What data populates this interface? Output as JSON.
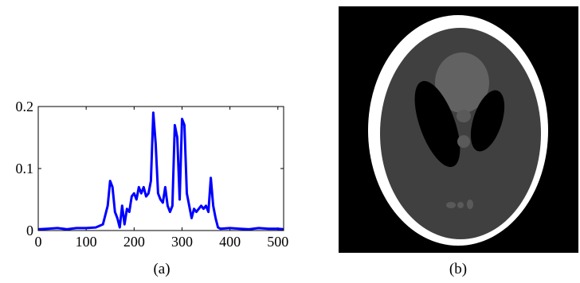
{
  "captions": {
    "a": "(a)",
    "b": "(b)"
  },
  "colors": {
    "line": "#0000ff",
    "axis": "#000000",
    "phantom_bg": "#000000",
    "phantom_skull": "#ffffff",
    "phantom_tissue": "#404040"
  },
  "chart_data": [
    {
      "type": "line",
      "title": "",
      "xlabel": "",
      "ylabel": "",
      "xlim": [
        0,
        512
      ],
      "ylim": [
        0,
        0.2
      ],
      "xticks": [
        0,
        100,
        200,
        300,
        400,
        500
      ],
      "yticks": [
        0,
        0.1,
        0.2
      ],
      "grid": false,
      "legend": "none",
      "series": [
        {
          "x": [
            0,
            20,
            40,
            60,
            80,
            100,
            120,
            135,
            145,
            150,
            155,
            160,
            165,
            170,
            175,
            180,
            185,
            190,
            195,
            200,
            205,
            210,
            215,
            220,
            225,
            230,
            235,
            240,
            245,
            250,
            255,
            260,
            265,
            270,
            275,
            280,
            285,
            290,
            295,
            300,
            305,
            310,
            315,
            320,
            325,
            330,
            335,
            340,
            345,
            350,
            355,
            360,
            365,
            370,
            375,
            380,
            400,
            420,
            440,
            460,
            480,
            500,
            512
          ],
          "y": [
            0.002,
            0.003,
            0.004,
            0.002,
            0.004,
            0.004,
            0.005,
            0.01,
            0.04,
            0.08,
            0.07,
            0.03,
            0.02,
            0.005,
            0.04,
            0.01,
            0.035,
            0.03,
            0.055,
            0.06,
            0.05,
            0.07,
            0.06,
            0.07,
            0.055,
            0.06,
            0.08,
            0.19,
            0.14,
            0.06,
            0.05,
            0.045,
            0.07,
            0.04,
            0.03,
            0.04,
            0.17,
            0.15,
            0.05,
            0.18,
            0.17,
            0.06,
            0.04,
            0.02,
            0.035,
            0.03,
            0.035,
            0.04,
            0.035,
            0.04,
            0.03,
            0.085,
            0.04,
            0.02,
            0.005,
            0.003,
            0.004,
            0.003,
            0.002,
            0.004,
            0.003,
            0.003,
            0.002
          ]
        }
      ]
    },
    {
      "type": "image",
      "description_type": "phantom"
    }
  ]
}
